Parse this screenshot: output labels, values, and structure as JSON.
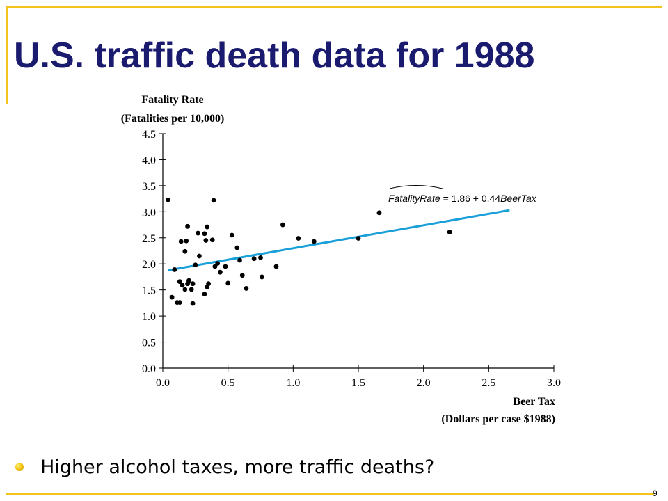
{
  "slide": {
    "title": "U.S. traffic death data for 1988",
    "bullet": "Higher alcohol taxes, more traffic deaths?",
    "page_number": "9"
  },
  "colors": {
    "title": "#1a1a6e",
    "frame": "#f2c31c",
    "regression_line": "#1aa0d8",
    "points": "#000000"
  },
  "icons": {
    "bullet": "yellow-circle-bullet-icon"
  },
  "chart_data": {
    "type": "scatter",
    "ylabel_line1": "Fatality Rate",
    "ylabel_line2": "(Fatalities per 10,000)",
    "xlabel_line1": "Beer Tax",
    "xlabel_line2": "(Dollars per case $1988)",
    "xlim": [
      0,
      3.0
    ],
    "ylim": [
      0,
      4.5
    ],
    "x_ticks": [
      "0.0",
      "0.5",
      "1.0",
      "1.5",
      "2.0",
      "2.5",
      "3.0"
    ],
    "y_ticks": [
      "0.0",
      "0.5",
      "1.0",
      "1.5",
      "2.0",
      "2.5",
      "3.0",
      "3.5",
      "4.0",
      "4.5"
    ],
    "grid": false,
    "regression": {
      "equation_lhs": "FatalityRate",
      "equation_rhs": " = 1.86 + 0.44",
      "equation_var": "BeerTax",
      "intercept": 1.86,
      "slope": 0.44,
      "x_range": [
        0.04,
        2.66
      ]
    },
    "points": [
      {
        "x": 0.04,
        "y": 3.23
      },
      {
        "x": 0.07,
        "y": 1.36
      },
      {
        "x": 0.09,
        "y": 1.89
      },
      {
        "x": 0.11,
        "y": 1.26
      },
      {
        "x": 0.13,
        "y": 1.26
      },
      {
        "x": 0.13,
        "y": 1.66
      },
      {
        "x": 0.14,
        "y": 2.43
      },
      {
        "x": 0.15,
        "y": 1.59
      },
      {
        "x": 0.17,
        "y": 1.51
      },
      {
        "x": 0.17,
        "y": 2.24
      },
      {
        "x": 0.18,
        "y": 2.44
      },
      {
        "x": 0.19,
        "y": 2.72
      },
      {
        "x": 0.19,
        "y": 1.62
      },
      {
        "x": 0.2,
        "y": 1.68
      },
      {
        "x": 0.22,
        "y": 1.51
      },
      {
        "x": 0.23,
        "y": 1.24
      },
      {
        "x": 0.23,
        "y": 1.62
      },
      {
        "x": 0.25,
        "y": 1.98
      },
      {
        "x": 0.27,
        "y": 2.59
      },
      {
        "x": 0.28,
        "y": 2.15
      },
      {
        "x": 0.32,
        "y": 1.42
      },
      {
        "x": 0.32,
        "y": 2.58
      },
      {
        "x": 0.33,
        "y": 2.45
      },
      {
        "x": 0.34,
        "y": 2.71
      },
      {
        "x": 0.34,
        "y": 1.56
      },
      {
        "x": 0.35,
        "y": 1.62
      },
      {
        "x": 0.38,
        "y": 2.46
      },
      {
        "x": 0.39,
        "y": 3.22
      },
      {
        "x": 0.4,
        "y": 1.95
      },
      {
        "x": 0.42,
        "y": 2.01
      },
      {
        "x": 0.44,
        "y": 1.84
      },
      {
        "x": 0.48,
        "y": 1.95
      },
      {
        "x": 0.5,
        "y": 1.63
      },
      {
        "x": 0.53,
        "y": 2.55
      },
      {
        "x": 0.57,
        "y": 2.31
      },
      {
        "x": 0.59,
        "y": 2.07
      },
      {
        "x": 0.61,
        "y": 1.78
      },
      {
        "x": 0.64,
        "y": 1.53
      },
      {
        "x": 0.7,
        "y": 2.1
      },
      {
        "x": 0.75,
        "y": 2.12
      },
      {
        "x": 0.76,
        "y": 1.75
      },
      {
        "x": 0.87,
        "y": 1.95
      },
      {
        "x": 0.92,
        "y": 2.75
      },
      {
        "x": 1.04,
        "y": 2.49
      },
      {
        "x": 1.16,
        "y": 2.43
      },
      {
        "x": 1.5,
        "y": 2.49
      },
      {
        "x": 1.66,
        "y": 2.98
      },
      {
        "x": 2.2,
        "y": 2.61
      }
    ]
  }
}
